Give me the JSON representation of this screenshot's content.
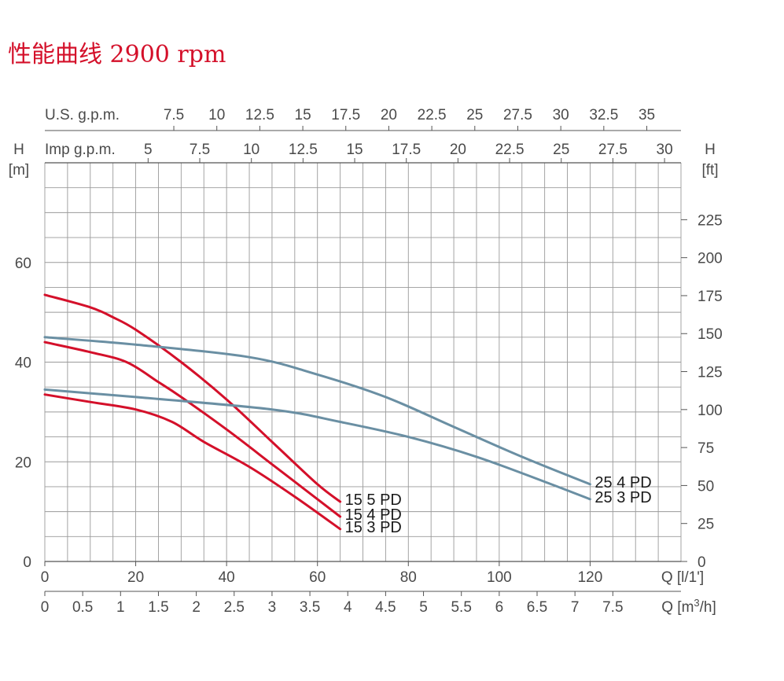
{
  "title": "性能曲线 2900 rpm",
  "colors": {
    "red_series": "#d4102a",
    "blue_series": "#6a8fa3",
    "grid": "#9a9a9a",
    "text": "#4a4a4a"
  },
  "chart_data": {
    "type": "line",
    "title": "性能曲线 2900 rpm",
    "grid": true,
    "xlim": [
      0,
      140
    ],
    "ylim": [
      0,
      80
    ],
    "x_axes": {
      "lpm": {
        "label": "Q [l/1']",
        "ticks": [
          0,
          20,
          40,
          60,
          80,
          100,
          120
        ]
      },
      "m3h": {
        "label": "Q [m³/h]",
        "ticks": [
          "0",
          "0.5",
          "1",
          "1.5",
          "2",
          "2.5",
          "3",
          "3.5",
          "4",
          "4.5",
          "5",
          "5.5",
          "6",
          "6.5",
          "7",
          "7.5"
        ]
      },
      "usgpm": {
        "label": "U.S. g.p.m.",
        "ticks": [
          "7.5",
          "10",
          "12.5",
          "15",
          "17.5",
          "20",
          "22.5",
          "25",
          "27.5",
          "30",
          "32.5",
          "35"
        ]
      },
      "impgpm": {
        "label": "Imp g.p.m.",
        "ticks": [
          "5",
          "7.5",
          "10",
          "12.5",
          "15",
          "17.5",
          "20",
          "22.5",
          "25",
          "27.5",
          "30"
        ]
      }
    },
    "y_axes": {
      "m": {
        "label_top": "H",
        "label_unit": "[m]",
        "ticks": [
          0,
          20,
          40,
          60
        ]
      },
      "ft": {
        "label_top": "H",
        "label_unit": "[ft]",
        "ticks": [
          "0",
          "25",
          "50",
          "75",
          "100",
          "125",
          "150",
          "175",
          "200",
          "225"
        ]
      }
    },
    "series": [
      {
        "name": "15 5 PD",
        "color": "#d4102a",
        "x": [
          0,
          10,
          15,
          20,
          30,
          40,
          50,
          60,
          65
        ],
        "y": [
          53.5,
          51,
          49,
          46.5,
          40,
          32.5,
          24,
          15.5,
          12
        ]
      },
      {
        "name": "15 4 PD",
        "color": "#d4102a",
        "x": [
          0,
          10,
          18,
          25,
          30,
          40,
          50,
          60,
          65
        ],
        "y": [
          44,
          42,
          40,
          36,
          33,
          26.5,
          19.5,
          12.5,
          9
        ]
      },
      {
        "name": "15 3 PD",
        "color": "#d4102a",
        "x": [
          0,
          10,
          20,
          28,
          35,
          45,
          55,
          65
        ],
        "y": [
          33.5,
          32,
          30.5,
          28,
          24,
          19,
          13,
          6.5
        ]
      },
      {
        "name": "25 4 PD",
        "color": "#6a8fa3",
        "x": [
          0,
          20,
          45,
          60,
          75,
          90,
          105,
          120
        ],
        "y": [
          45,
          43.5,
          41,
          37.5,
          33,
          27,
          21,
          15.5
        ]
      },
      {
        "name": "25 3 PD",
        "color": "#6a8fa3",
        "x": [
          0,
          20,
          50,
          65,
          80,
          95,
          110,
          120
        ],
        "y": [
          34.5,
          33,
          30.5,
          28,
          25,
          21,
          16,
          12.5
        ]
      }
    ]
  }
}
